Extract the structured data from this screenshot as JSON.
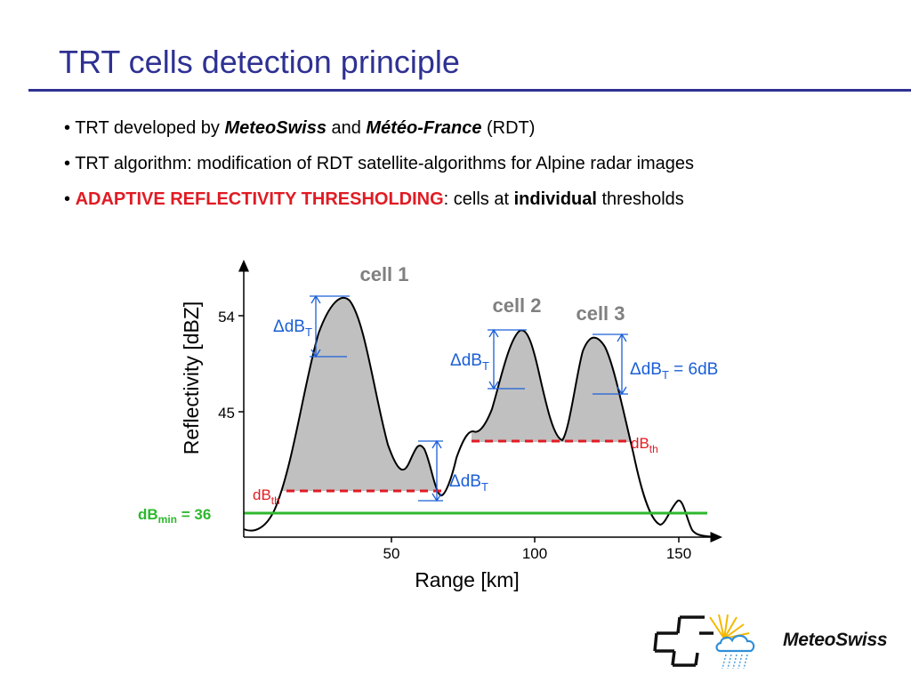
{
  "title": "TRT cells detection principle",
  "bullets": {
    "b1": {
      "prefix": "• TRT developed by ",
      "org1": "MeteoSwiss",
      "and": " and ",
      "org2": "Météo-France",
      "suffix": " (RDT)"
    },
    "b2": {
      "text": "• TRT algorithm: modification of RDT satellite-algorithms for Alpine radar images"
    },
    "b3": {
      "prefix": "• ",
      "highlight": "ADAPTIVE REFLECTIVITY THRESHOLDING",
      "mid": ": cells at ",
      "bold": "individual",
      "suffix": " thresholds"
    }
  },
  "diagram": {
    "y_axis_label": "Reflectivity [dBZ]",
    "x_axis_label": "Range [km]",
    "y_ticks": [
      "54",
      "45"
    ],
    "x_ticks": [
      "50",
      "100",
      "150"
    ],
    "cells": [
      "cell 1",
      "cell 2",
      "cell 3"
    ],
    "delta_label": "ΔdB",
    "delta_sub": "T",
    "delta_cell3_suffix": " = 6dB",
    "dbth_label": "dB",
    "dbth_sub": "th",
    "dbmin_label": "dB",
    "dbmin_sub": "min",
    "dbmin_value": " = 36",
    "colors": {
      "threshold": "#e01b24",
      "min_line": "#2db82d",
      "delta": "#1b5fd6",
      "fill": "#c0c0c0",
      "cell_label": "#808080"
    }
  },
  "logo": {
    "text": "MeteoSwiss"
  }
}
